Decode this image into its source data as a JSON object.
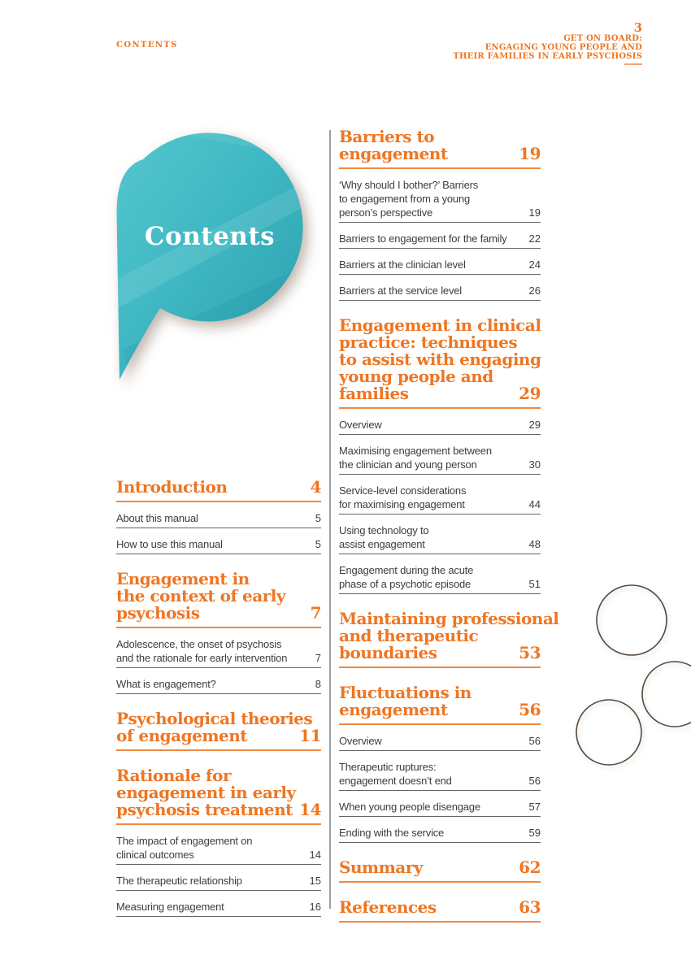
{
  "page": {
    "running_header": "CONTENTS",
    "page_number": "3",
    "doc_title_lines": [
      "GET ON BOARD:",
      "ENGAGING YOUNG PEOPLE AND",
      "THEIR FAMILIES IN EARLY PSYCHOSIS"
    ],
    "bubble_title": "Contents"
  },
  "colors": {
    "orange": "#ee7623",
    "orange_rule": "#f0883e",
    "teal": "#3fb8c3",
    "teal_light": "#55c6ce",
    "teal_dark": "#2b9fae",
    "text": "#3d3d3f",
    "rule_gray": "#646466",
    "divider_gray": "#9d9fa2",
    "circle_stroke": "#56493f"
  },
  "toc": {
    "left_column": [
      {
        "heading_lines": [
          "Introduction"
        ],
        "page": "4",
        "items": [
          {
            "label_lines": [
              "About this manual"
            ],
            "page": "5"
          },
          {
            "label_lines": [
              "How to use this manual"
            ],
            "page": "5"
          }
        ]
      },
      {
        "heading_lines": [
          "Engagement in",
          "the context of early",
          "psychosis"
        ],
        "page": "7",
        "items": [
          {
            "label_lines": [
              "Adolescence, the onset of psychosis",
              "and the rationale for early intervention"
            ],
            "page": "7"
          },
          {
            "label_lines": [
              "What is engagement?"
            ],
            "page": "8"
          }
        ]
      },
      {
        "heading_lines": [
          "Psychological theories",
          "of engagement"
        ],
        "page": "11",
        "items": []
      },
      {
        "heading_lines": [
          "Rationale for",
          "engagement in early",
          "psychosis treatment"
        ],
        "page": "14",
        "items": [
          {
            "label_lines": [
              "The impact of engagement on",
              "clinical outcomes"
            ],
            "page": "14"
          },
          {
            "label_lines": [
              "The therapeutic relationship"
            ],
            "page": "15"
          },
          {
            "label_lines": [
              "Measuring engagement"
            ],
            "page": "16"
          }
        ]
      }
    ],
    "right_column": [
      {
        "heading_lines": [
          "Barriers to",
          "engagement"
        ],
        "page": "19",
        "items": [
          {
            "label_lines": [
              "‘Why should I bother?’ Barriers",
              "to engagement from a young",
              "person’s perspective"
            ],
            "page": "19"
          },
          {
            "label_lines": [
              "Barriers to engagement for the family"
            ],
            "page": "22"
          },
          {
            "label_lines": [
              "Barriers at the clinician level"
            ],
            "page": "24"
          },
          {
            "label_lines": [
              "Barriers at the service level"
            ],
            "page": "26"
          }
        ]
      },
      {
        "heading_lines": [
          "Engagement in clinical",
          "practice: techniques",
          "to assist with engaging",
          "young people and",
          "families"
        ],
        "page": "29",
        "items": [
          {
            "label_lines": [
              "Overview"
            ],
            "page": "29"
          },
          {
            "label_lines": [
              "Maximising engagement between",
              "the clinician and young person"
            ],
            "page": "30"
          },
          {
            "label_lines": [
              "Service-level considerations",
              "for maximising engagement"
            ],
            "page": "44"
          },
          {
            "label_lines": [
              "Using technology to",
              "assist engagement"
            ],
            "page": "48"
          },
          {
            "label_lines": [
              "Engagement during the acute",
              "phase of a psychotic episode"
            ],
            "page": "51"
          }
        ]
      },
      {
        "heading_lines": [
          "Maintaining professional",
          "and therapeutic",
          "boundaries"
        ],
        "page": "53",
        "items": []
      },
      {
        "heading_lines": [
          "Fluctuations in",
          "engagement"
        ],
        "page": "56",
        "items": [
          {
            "label_lines": [
              "Overview"
            ],
            "page": "56"
          },
          {
            "label_lines": [
              "Therapeutic ruptures:",
              "engagement doesn’t end"
            ],
            "page": "56"
          },
          {
            "label_lines": [
              "When young people disengage"
            ],
            "page": "57"
          },
          {
            "label_lines": [
              "Ending with the service"
            ],
            "page": "59"
          }
        ]
      },
      {
        "heading_lines": [
          "Summary"
        ],
        "page": "62",
        "items": []
      },
      {
        "heading_lines": [
          "References"
        ],
        "page": "63",
        "items": []
      }
    ]
  }
}
